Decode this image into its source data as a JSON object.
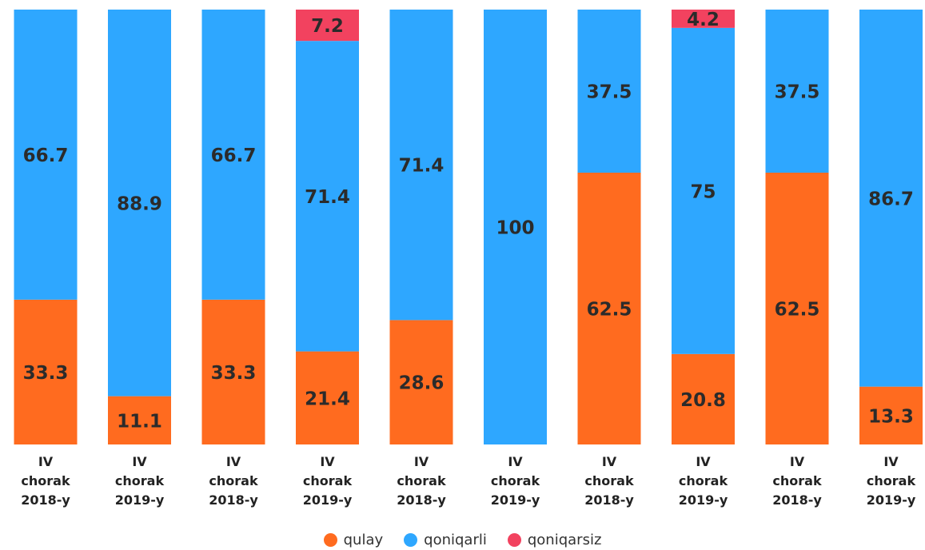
{
  "chart_data": {
    "type": "bar",
    "stacked": true,
    "categories": [
      "IV chorak 2018-y",
      "IV chorak 2019-y",
      "IV chorak 2018-y",
      "IV chorak 2019-y",
      "IV chorak 2018-y",
      "IV chorak 2019-y",
      "IV chorak 2018-y",
      "IV chorak 2019-y",
      "IV chorak 2018-y",
      "IV chorak 2019-y"
    ],
    "series": [
      {
        "name": "qulay",
        "color": "#ff6b1f",
        "values": [
          33.3,
          11.1,
          33.3,
          21.4,
          28.6,
          null,
          62.5,
          20.8,
          62.5,
          13.3
        ]
      },
      {
        "name": "qoniqarli",
        "color": "#2ea7ff",
        "values": [
          66.7,
          88.9,
          66.7,
          71.4,
          71.4,
          100,
          37.5,
          75,
          37.5,
          86.7
        ]
      },
      {
        "name": "qoniqarsiz",
        "color": "#f2425f",
        "values": [
          null,
          null,
          null,
          7.2,
          null,
          null,
          null,
          4.2,
          null,
          null
        ]
      }
    ],
    "ylim": [
      0,
      100
    ],
    "legend": "bottom"
  }
}
